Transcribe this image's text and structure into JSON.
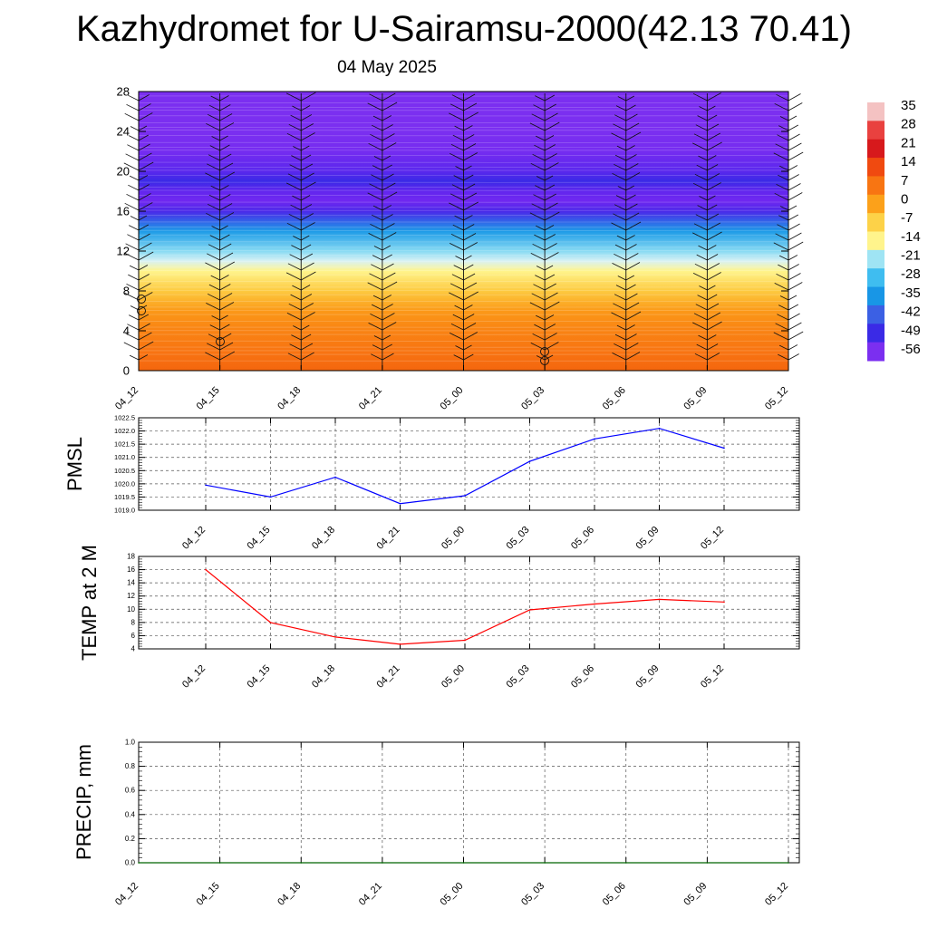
{
  "title": "Kazhydromet for U-Sairamsu-2000(42.13 70.41)",
  "subtitle": "04 May 2025",
  "chart_data": [
    {
      "type": "heatmap",
      "ylim": [
        0,
        28
      ],
      "y_ticks": [
        0,
        4,
        8,
        12,
        16,
        20,
        24,
        28
      ],
      "x_ticks": [
        "04_12",
        "04_15",
        "04_18",
        "04_21",
        "05_00",
        "05_03",
        "05_06",
        "05_09",
        "05_12"
      ],
      "value_profile": {
        "levels": [
          0,
          2,
          4,
          6,
          8,
          10,
          11,
          12,
          14,
          16,
          17,
          18,
          19,
          20,
          22,
          24,
          28
        ],
        "values": [
          16,
          12,
          8,
          2,
          -5,
          -12,
          -15,
          -22,
          -35,
          -52,
          -58,
          -55,
          -50,
          -54,
          -60,
          -62,
          -62
        ]
      },
      "colorbar": {
        "labels": [
          "35",
          "28",
          "21",
          "14",
          "7",
          "0",
          "-7",
          "-14",
          "-21",
          "-28",
          "-35",
          "-42",
          "-49",
          "-56"
        ],
        "colors": [
          "#f4c2c2",
          "#e9413f",
          "#d7191c",
          "#f04a10",
          "#f87512",
          "#fca11a",
          "#fdd248",
          "#fff48c",
          "#9fe4f4",
          "#3fbdf0",
          "#1896e6",
          "#3b60e4",
          "#3a2ae6",
          "#7b2ff0"
        ]
      }
    },
    {
      "type": "line",
      "ylabel": "PMSL",
      "x": [
        "04_12",
        "04_15",
        "04_18",
        "04_21",
        "05_00",
        "05_03",
        "05_06",
        "05_09",
        "05_12"
      ],
      "values": [
        1019.95,
        1019.5,
        1020.25,
        1019.25,
        1019.55,
        1020.85,
        1021.7,
        1022.1,
        1021.35
      ],
      "ylim": [
        1019.0,
        1022.5
      ],
      "y_ticks": [
        "1019.0",
        "1019.5",
        "1020.0",
        "1020.5",
        "1021.0",
        "1021.5",
        "1022.0",
        "1022.5"
      ],
      "color": "#0000ff",
      "grid": true
    },
    {
      "type": "line",
      "ylabel": "TEMP at 2 M",
      "x": [
        "04_12",
        "04_15",
        "04_18",
        "04_21",
        "05_00",
        "05_03",
        "05_06",
        "05_09",
        "05_12"
      ],
      "values": [
        16,
        8,
        5.8,
        4.7,
        5.3,
        9.9,
        10.8,
        11.5,
        11.1
      ],
      "ylim": [
        4,
        18
      ],
      "y_ticks": [
        "4",
        "6",
        "8",
        "10",
        "12",
        "14",
        "16",
        "18"
      ],
      "color": "#ff0000",
      "grid": true
    },
    {
      "type": "line",
      "ylabel": "PRECIP, mm",
      "x": [
        "04_12",
        "04_15",
        "04_18",
        "04_21",
        "05_00",
        "05_03",
        "05_06",
        "05_09",
        "05_12"
      ],
      "values": [
        0,
        0,
        0,
        0,
        0,
        0,
        0,
        0,
        0
      ],
      "ylim": [
        0,
        1
      ],
      "y_ticks": [
        "0.0",
        "0.2",
        "0.4",
        "0.6",
        "0.8",
        "1.0"
      ],
      "color": "#006400",
      "grid": true
    }
  ]
}
